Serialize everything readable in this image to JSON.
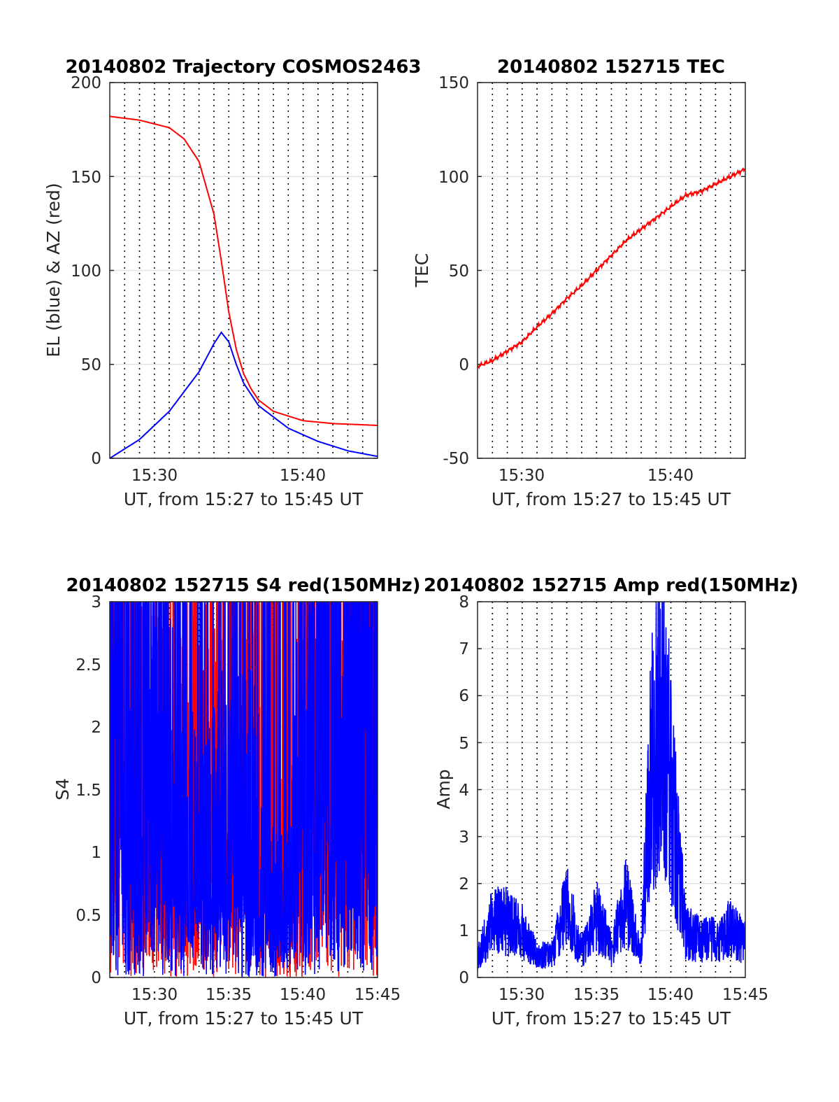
{
  "chart_data": [
    {
      "type": "line",
      "title": "20140802 Trajectory COSMOS2463",
      "xlabel": "UT, from 15:27 to 15:45 UT",
      "ylabel": "EL (blue) & AZ (red)",
      "xlim": [
        15.45,
        15.75
      ],
      "ylim": [
        0,
        200
      ],
      "x_ticks": [
        "15:30",
        "15:40"
      ],
      "y_ticks": [
        "0",
        "50",
        "100",
        "150",
        "200"
      ],
      "grid": "dotted vertical every minute, light horizontal at y ticks",
      "series": [
        {
          "color": "#ff0000",
          "x": [
            15.45,
            15.4833,
            15.5167,
            15.5333,
            15.55,
            15.5667,
            15.575,
            15.5833,
            15.5917,
            15.6,
            15.6083,
            15.6167,
            15.6333,
            15.6667,
            15.7,
            15.75
          ],
          "y": [
            182,
            180,
            176,
            170,
            158,
            130,
            105,
            78,
            58,
            45,
            37,
            31,
            25,
            20,
            18.5,
            17.5
          ]
        },
        {
          "color": "#0000ff",
          "x": [
            15.45,
            15.4833,
            15.5167,
            15.55,
            15.5667,
            15.575,
            15.5833,
            15.5917,
            15.6,
            15.6167,
            15.65,
            15.6833,
            15.7167,
            15.75
          ],
          "y": [
            0,
            10,
            25,
            46,
            61,
            67,
            62,
            50,
            40,
            28,
            16,
            9,
            4,
            1
          ]
        }
      ]
    },
    {
      "type": "line",
      "title": "20140802 152715 TEC",
      "xlabel": "UT, from 15:27 to 15:45 UT",
      "ylabel": "TEC",
      "xlim": [
        15.45,
        15.75
      ],
      "ylim": [
        -50,
        150
      ],
      "x_ticks": [
        "15:30",
        "15:40"
      ],
      "y_ticks": [
        "-50",
        "0",
        "50",
        "100",
        "150"
      ],
      "series": [
        {
          "color": "#ff0000",
          "x": [
            15.45,
            15.4667,
            15.4833,
            15.5,
            15.5167,
            15.5333,
            15.55,
            15.5667,
            15.5833,
            15.6,
            15.6167,
            15.6333,
            15.65,
            15.6667,
            15.6833,
            15.7,
            15.7167,
            15.7333,
            15.75
          ],
          "y": [
            -1,
            2,
            7,
            12,
            20,
            27,
            35,
            42,
            50,
            58,
            66,
            72,
            78,
            84,
            90,
            92,
            96,
            100,
            104
          ]
        }
      ]
    },
    {
      "type": "line",
      "title": "20140802 152715 S4 red(150MHz)",
      "xlabel": "UT, from 15:27 to 15:45 UT",
      "ylabel": "S4",
      "xlim": [
        15.45,
        15.75
      ],
      "ylim": [
        0,
        3
      ],
      "x_ticks": [
        "15:30",
        "15:35",
        "15:40",
        "15:45"
      ],
      "y_ticks": [
        "0",
        "0.5",
        "1",
        "1.5",
        "2",
        "2.5",
        "3"
      ],
      "series": [
        {
          "color": "#ff0000",
          "x": [
            15.45,
            15.5,
            15.55,
            15.6,
            15.65,
            15.6667,
            15.7,
            15.75
          ],
          "y": [
            2.5,
            1.5,
            1.4,
            2.0,
            0.6,
            2.0,
            2.2,
            2.4
          ]
        },
        {
          "color": "#0000ff",
          "x": [
            15.45,
            15.5,
            15.55,
            15.6,
            15.6333,
            15.65,
            15.6667,
            15.7,
            15.75
          ],
          "y": [
            2.4,
            1.8,
            1.0,
            1.5,
            0.6,
            0.6,
            2.2,
            2.3,
            2.3
          ]
        }
      ]
    },
    {
      "type": "line",
      "title": "20140802 152715 Amp red(150MHz)",
      "xlabel": "UT, from 15:27 to 15:45 UT",
      "ylabel": "Amp",
      "xlim": [
        15.45,
        15.75
      ],
      "ylim": [
        0,
        8
      ],
      "x_ticks": [
        "15:30",
        "15:35",
        "15:40",
        "15:45"
      ],
      "y_ticks": [
        "0",
        "1",
        "2",
        "3",
        "4",
        "5",
        "6",
        "7",
        "8"
      ],
      "series": [
        {
          "color": "#0000ff",
          "x": [
            15.45,
            15.4667,
            15.4833,
            15.5,
            15.5167,
            15.5333,
            15.55,
            15.5667,
            15.5833,
            15.6,
            15.6167,
            15.6333,
            15.6417,
            15.65,
            15.6583,
            15.6667,
            15.6833,
            15.7,
            15.7167,
            15.7333,
            15.75
          ],
          "y": [
            0.5,
            1.5,
            1.5,
            1.2,
            0.6,
            0.6,
            1.9,
            0.7,
            1.6,
            0.8,
            2.0,
            0.6,
            4.9,
            6.5,
            7.2,
            5.0,
            1.2,
            1.0,
            1.0,
            1.3,
            0.9
          ]
        }
      ]
    }
  ]
}
